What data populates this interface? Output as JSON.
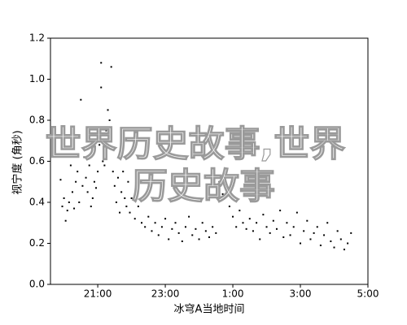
{
  "chart_data": {
    "type": "scatter",
    "xlabel": "冰穹A当地时间",
    "ylabel": "视宁度 (角秒)",
    "watermark": [
      "世界历史故事,世界",
      "历史故事"
    ],
    "color": "#000000",
    "xlim": [
      19.6,
      29
    ],
    "xticks": [
      {
        "value": 21,
        "label": "21:00"
      },
      {
        "value": 23,
        "label": "23:00"
      },
      {
        "value": 25,
        "label": "1:00"
      },
      {
        "value": 27,
        "label": "3:00"
      },
      {
        "value": 29,
        "label": "5:00"
      }
    ],
    "ylim": [
      0,
      1.2
    ],
    "yticks": [
      {
        "value": 0,
        "label": "0.0"
      },
      0.2,
      0.4,
      0.6,
      0.8,
      {
        "value": 1,
        "label": "1.0"
      },
      1.2
    ],
    "grid": false,
    "x": [
      19.9,
      19.95,
      20.0,
      20.05,
      20.1,
      20.15,
      20.2,
      20.25,
      20.3,
      20.35,
      20.4,
      20.45,
      20.5,
      20.55,
      20.6,
      20.65,
      20.7,
      20.75,
      20.8,
      20.85,
      20.9,
      20.95,
      21.0,
      21.05,
      21.1,
      21.1,
      21.15,
      21.2,
      21.25,
      21.3,
      21.35,
      21.4,
      21.45,
      21.5,
      21.55,
      21.6,
      21.65,
      21.7,
      21.75,
      21.8,
      21.85,
      21.9,
      21.95,
      22.0,
      22.1,
      22.2,
      22.3,
      22.4,
      22.5,
      22.6,
      22.7,
      22.8,
      22.9,
      23.0,
      23.1,
      23.2,
      23.3,
      23.4,
      23.5,
      23.6,
      23.7,
      23.8,
      23.9,
      24.0,
      24.1,
      24.2,
      24.3,
      24.4,
      24.5,
      24.6,
      24.65,
      24.7,
      24.8,
      24.9,
      25.0,
      25.1,
      25.2,
      25.3,
      25.4,
      25.5,
      25.6,
      25.7,
      25.8,
      25.9,
      26.0,
      26.1,
      26.2,
      26.3,
      26.4,
      26.5,
      26.6,
      26.7,
      26.8,
      26.9,
      27.0,
      27.1,
      27.2,
      27.3,
      27.4,
      27.5,
      27.6,
      27.7,
      27.8,
      27.9,
      28.0,
      28.1,
      28.2,
      28.3,
      28.4,
      28.5
    ],
    "values": [
      0.51,
      0.38,
      0.42,
      0.31,
      0.36,
      0.4,
      0.58,
      0.45,
      0.37,
      0.5,
      0.55,
      0.4,
      0.9,
      0.48,
      0.62,
      0.52,
      0.45,
      0.58,
      0.38,
      0.42,
      0.5,
      0.47,
      0.55,
      0.68,
      1.08,
      0.96,
      0.6,
      0.58,
      0.75,
      0.85,
      0.8,
      1.06,
      0.55,
      0.48,
      0.4,
      0.52,
      0.35,
      0.45,
      0.55,
      0.42,
      0.38,
      0.5,
      0.35,
      0.42,
      0.32,
      0.38,
      0.3,
      0.28,
      0.33,
      0.26,
      0.3,
      0.24,
      0.28,
      0.32,
      0.22,
      0.27,
      0.3,
      0.25,
      0.21,
      0.28,
      0.33,
      0.24,
      0.27,
      0.22,
      0.3,
      0.26,
      0.23,
      0.28,
      0.25,
      0.5,
      0.62,
      0.44,
      0.48,
      0.38,
      0.33,
      0.28,
      0.36,
      0.3,
      0.27,
      0.32,
      0.26,
      0.3,
      0.22,
      0.34,
      0.28,
      0.25,
      0.31,
      0.27,
      0.36,
      0.23,
      0.3,
      0.24,
      0.28,
      0.35,
      0.2,
      0.26,
      0.31,
      0.22,
      0.25,
      0.28,
      0.19,
      0.24,
      0.3,
      0.21,
      0.18,
      0.26,
      0.22,
      0.17,
      0.2,
      0.25
    ]
  }
}
